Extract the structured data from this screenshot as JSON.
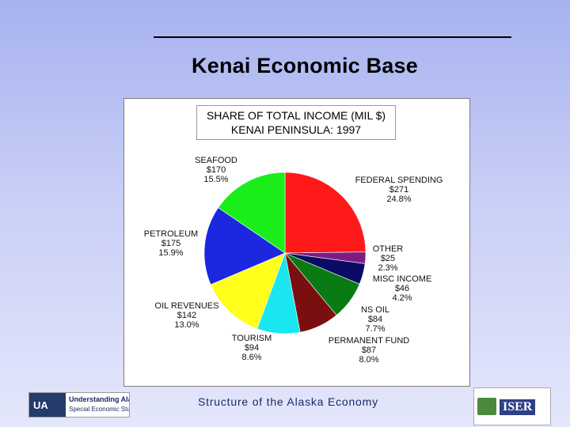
{
  "slide": {
    "title": "Kenai Economic Base",
    "footer": "Structure of the Alaska Economy"
  },
  "logos": {
    "left": {
      "badge": "UA",
      "line1": "Understanding Alaska:",
      "line2": "Special Economic Studies"
    },
    "right": {
      "name": "ISER"
    }
  },
  "chart_data": {
    "type": "pie",
    "title": "SHARE OF TOTAL INCOME (MIL $)",
    "subtitle": "KENAI PENINSULA: 1997",
    "colors": {
      "FEDERAL SPENDING": "#ff1a1a",
      "OTHER": "#7b1c87",
      "MISC INCOME": "#0b0b66",
      "NS OIL": "#0a7a12",
      "PERMANENT FUND": "#7a0f0f",
      "TOURISM": "#19e6f0",
      "OIL REVENUES": "#ffff1a",
      "PETROLEUM": "#1c27e0",
      "SEAFOOD": "#1aee1a"
    },
    "slices": [
      {
        "label": "FEDERAL SPENDING",
        "value_text": "$271",
        "percent_text": "24.8%",
        "value": 271,
        "percent": 24.8
      },
      {
        "label": "OTHER",
        "value_text": "$25",
        "percent_text": "2.3%",
        "value": 25,
        "percent": 2.3
      },
      {
        "label": "MISC INCOME",
        "value_text": "$46",
        "percent_text": "4.2%",
        "value": 46,
        "percent": 4.2
      },
      {
        "label": "NS OIL",
        "value_text": "$84",
        "percent_text": "7.7%",
        "value": 84,
        "percent": 7.7
      },
      {
        "label": "PERMANENT FUND",
        "value_text": "$87",
        "percent_text": "8.0%",
        "value": 87,
        "percent": 8.0
      },
      {
        "label": "TOURISM",
        "value_text": "$94",
        "percent_text": "8.6%",
        "value": 94,
        "percent": 8.6
      },
      {
        "label": "OIL REVENUES",
        "value_text": "$142",
        "percent_text": "13.0%",
        "value": 142,
        "percent": 13.0
      },
      {
        "label": "PETROLEUM",
        "value_text": "$175",
        "percent_text": "15.9%",
        "value": 175,
        "percent": 15.9
      },
      {
        "label": "SEAFOOD",
        "value_text": "$170",
        "percent_text": "15.5%",
        "value": 170,
        "percent": 15.5
      }
    ]
  }
}
